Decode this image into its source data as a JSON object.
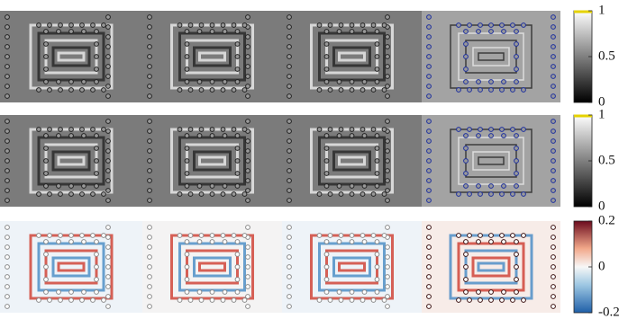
{
  "rows": [
    {
      "colormap": "gray",
      "colorbar": {
        "lim": [
          0,
          1
        ],
        "ticks": [
          0,
          0.5,
          1
        ]
      }
    },
    {
      "colormap": "gray",
      "colorbar": {
        "lim": [
          0,
          1
        ],
        "ticks": [
          0,
          0.5,
          1
        ]
      }
    },
    {
      "colormap": "rdbu",
      "colorbar": {
        "lim": [
          -0.2,
          0.2
        ],
        "ticks": [
          -0.2,
          0,
          0.2
        ]
      }
    }
  ]
}
